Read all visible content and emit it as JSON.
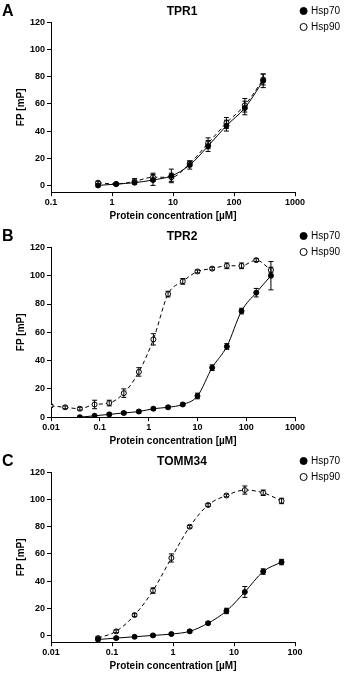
{
  "chart_data": [
    {
      "type": "scatter",
      "panel": "A",
      "title": "TPR1",
      "x_label": "Protein concentration [µM]",
      "y_label": "FP [mP]",
      "log": "x",
      "grid": false,
      "legend": "right",
      "xlim": [
        0.1,
        1000
      ],
      "xticks": [
        0.1,
        1,
        10,
        100,
        1000
      ],
      "ylim": [
        -5,
        120
      ],
      "yticks": [
        0,
        20,
        40,
        60,
        80,
        100,
        120
      ],
      "series": [
        {
          "name": "Hsp70",
          "color": "#000000",
          "marker": "filled_circle",
          "line_style": "solid",
          "x": [
            0.59,
            1.17,
            2.34,
            4.69,
            9.38,
            18.75,
            37.5,
            75,
            150,
            300
          ],
          "values": [
            0,
            1,
            2,
            4,
            7,
            15,
            29,
            44,
            57,
            77
          ],
          "errors": [
            1,
            1,
            1,
            4,
            5,
            3,
            4,
            4,
            5,
            5
          ]
        },
        {
          "name": "Hsp90",
          "color": "#000000",
          "marker": "open_circle",
          "line_style": "dashed",
          "x": [
            0.59,
            1.17,
            2.34,
            4.69,
            9.38,
            18.75,
            37.5,
            75,
            150,
            300
          ],
          "values": [
            2,
            1,
            3,
            6,
            6,
            16,
            31,
            46,
            59,
            78
          ],
          "errors": [
            1,
            1,
            2,
            3,
            3,
            2,
            4,
            4,
            5,
            4
          ]
        }
      ]
    },
    {
      "type": "scatter",
      "panel": "B",
      "title": "TPR2",
      "x_label": "Protein concentration [µM]",
      "y_label": "FP [mP]",
      "log": "x",
      "grid": false,
      "legend": "right",
      "xlim": [
        0.01,
        1000
      ],
      "xticks": [
        0.01,
        0.1,
        1,
        10,
        100,
        1000
      ],
      "ylim": [
        0,
        120
      ],
      "yticks": [
        0,
        20,
        40,
        60,
        80,
        100,
        120
      ],
      "series": [
        {
          "name": "Hsp70",
          "color": "#000000",
          "marker": "filled_circle",
          "line_style": "solid",
          "x": [
            0.039,
            0.078,
            0.156,
            0.31,
            0.63,
            1.25,
            2.5,
            5,
            10,
            20,
            40,
            80,
            160,
            320
          ],
          "values": [
            0,
            1,
            2,
            3,
            4,
            6,
            7,
            9,
            15,
            35,
            50,
            75,
            88,
            100
          ],
          "errors": [
            1,
            1,
            1,
            1,
            1,
            1,
            1,
            1,
            2,
            2,
            2,
            2,
            3,
            10
          ]
        },
        {
          "name": "Hsp90",
          "color": "#000000",
          "marker": "open_circle",
          "line_style": "dashed",
          "x": [
            0.0098,
            0.0195,
            0.039,
            0.078,
            0.156,
            0.31,
            0.63,
            1.25,
            2.5,
            5,
            10,
            20,
            40,
            80,
            160,
            320
          ],
          "values": [
            8,
            7,
            6,
            9,
            10,
            17,
            32,
            55,
            87,
            96,
            103,
            105,
            107,
            107,
            111,
            104
          ],
          "errors": [
            1,
            1,
            1,
            3,
            2,
            3,
            3,
            4,
            2,
            2,
            1,
            1,
            2,
            2,
            1,
            2
          ]
        }
      ]
    },
    {
      "type": "scatter",
      "panel": "C",
      "title": "TOMM34",
      "x_label": "Protein concentration [µM]",
      "y_label": "FP [mP]",
      "log": "x",
      "grid": false,
      "legend": "right",
      "xlim": [
        0.01,
        100
      ],
      "xticks": [
        0.01,
        0.1,
        1,
        10,
        100
      ],
      "ylim": [
        -5,
        120
      ],
      "yticks": [
        0,
        20,
        40,
        60,
        80,
        100,
        120
      ],
      "series": [
        {
          "name": "Hsp70",
          "color": "#000000",
          "marker": "filled_circle",
          "line_style": "solid",
          "x": [
            0.059,
            0.117,
            0.234,
            0.469,
            0.938,
            1.875,
            3.75,
            7.5,
            15,
            30,
            60
          ],
          "values": [
            -3,
            -2,
            -1,
            0,
            1,
            3,
            9,
            18,
            32,
            47,
            54
          ],
          "errors": [
            1,
            1,
            1,
            1,
            1,
            1,
            1,
            2,
            4,
            2,
            2
          ]
        },
        {
          "name": "Hsp90",
          "color": "#000000",
          "marker": "open_circle",
          "line_style": "dashed",
          "x": [
            0.059,
            0.117,
            0.234,
            0.469,
            0.938,
            1.875,
            3.75,
            7.5,
            15,
            30,
            60
          ],
          "values": [
            -2,
            3,
            15,
            33,
            57,
            80,
            96,
            103,
            107,
            105,
            99
          ],
          "errors": [
            1,
            1,
            1,
            2,
            3,
            1,
            1,
            1,
            3,
            2,
            2
          ]
        }
      ]
    }
  ]
}
